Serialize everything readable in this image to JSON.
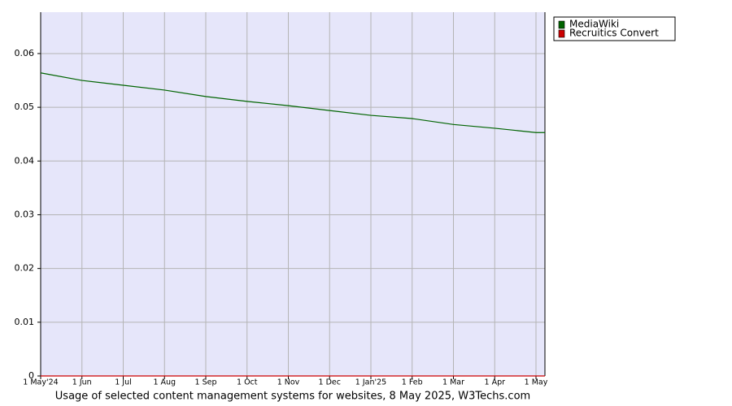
{
  "chart_data": {
    "type": "line",
    "title": "Usage of selected content management systems for websites, 8 May 2025, W3Techs.com",
    "categories": [
      "1 May'24",
      "1 Jun",
      "1 Jul",
      "1 Aug",
      "1 Sep",
      "1 Oct",
      "1 Nov",
      "1 Dec",
      "1 Jan'25",
      "1 Feb",
      "1 Mar",
      "1 Apr",
      "1 May",
      null
    ],
    "series": [
      {
        "name": "MediaWiki",
        "color": "#006400",
        "values": [
          0.0564,
          0.055,
          0.0541,
          0.0532,
          0.052,
          0.0511,
          0.0503,
          0.0494,
          0.0485,
          0.0479,
          0.0468,
          0.0461,
          0.0453,
          0.0453
        ]
      },
      {
        "name": "Recruitics Convert",
        "color": "#cc0000",
        "values": [
          0,
          0,
          0,
          0,
          0,
          0,
          0,
          0,
          0,
          0,
          0,
          0,
          0,
          0
        ]
      }
    ],
    "ylim": [
      0,
      0.0677
    ],
    "yticks": [
      0,
      0.01,
      0.02,
      0.03,
      0.04,
      0.05,
      0.06
    ],
    "grid": true,
    "legend": "right",
    "background": "#e6e6fa"
  }
}
